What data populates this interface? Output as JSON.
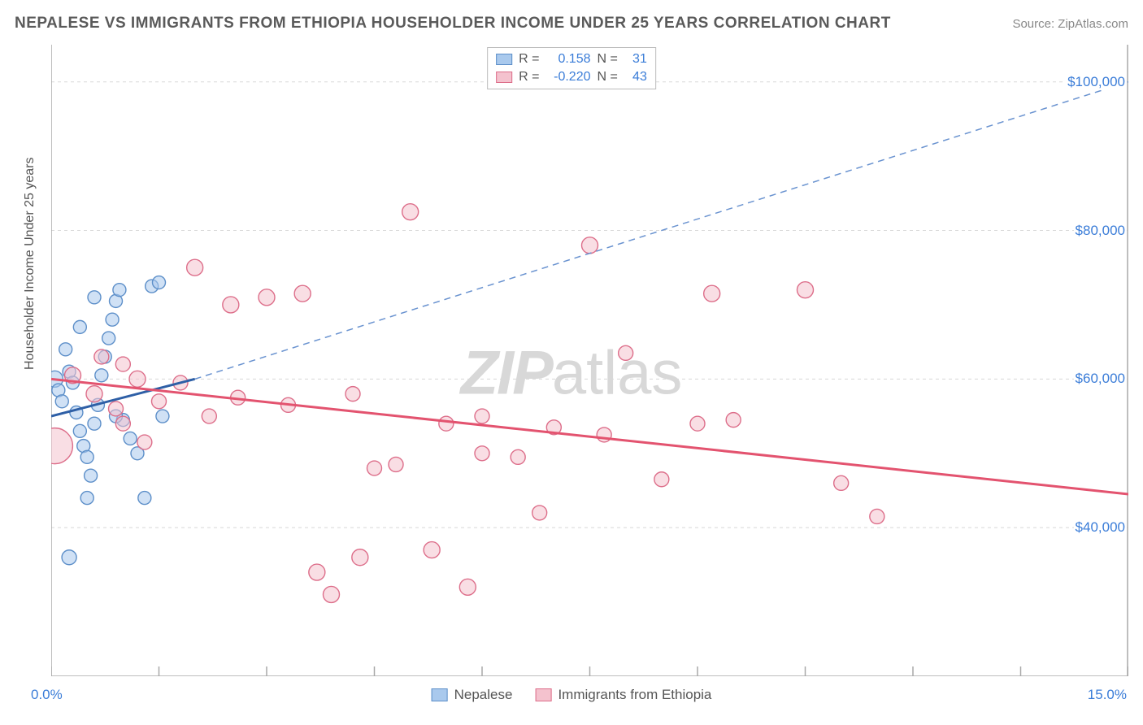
{
  "header": {
    "title": "NEPALESE VS IMMIGRANTS FROM ETHIOPIA HOUSEHOLDER INCOME UNDER 25 YEARS CORRELATION CHART",
    "source": "Source: ZipAtlas.com"
  },
  "watermark": {
    "bold": "ZIP",
    "light": "atlas"
  },
  "chart": {
    "type": "scatter",
    "ylabel": "Householder Income Under 25 years",
    "x_axis": {
      "min_label": "0.0%",
      "max_label": "15.0%",
      "min": 0,
      "max": 15
    },
    "y_axis": {
      "min": 20000,
      "max": 105000,
      "ticks": [
        40000,
        60000,
        80000,
        100000
      ],
      "tick_labels": [
        "$40,000",
        "$60,000",
        "$80,000",
        "$100,000"
      ]
    },
    "x_ticks": [
      0,
      1.5,
      3,
      4.5,
      6,
      7.5,
      9,
      10.5,
      12,
      13.5,
      15
    ],
    "background_color": "#ffffff",
    "grid_color": "#d8d8d8",
    "border_color": "#a8a8a8",
    "series": [
      {
        "name": "Nepalese",
        "fill_color": "#a9c9ed",
        "stroke_color": "#5d8fc9",
        "r_value": "0.158",
        "n_value": "31",
        "trend": {
          "x1": 0,
          "y1": 55000,
          "x2": 2.0,
          "y2": 60000,
          "solid_color": "#2e5fa6",
          "width": 3
        },
        "trend_ext": {
          "x1": 2.0,
          "y1": 60000,
          "x2": 15,
          "y2": 100000,
          "dash_color": "#6a93d0",
          "width": 1.5
        },
        "points": [
          {
            "x": 0.05,
            "y": 60000,
            "r": 10
          },
          {
            "x": 0.1,
            "y": 58500,
            "r": 8
          },
          {
            "x": 0.15,
            "y": 57000,
            "r": 8
          },
          {
            "x": 0.2,
            "y": 64000,
            "r": 8
          },
          {
            "x": 0.25,
            "y": 61000,
            "r": 8
          },
          {
            "x": 0.3,
            "y": 59500,
            "r": 8
          },
          {
            "x": 0.35,
            "y": 55500,
            "r": 8
          },
          {
            "x": 0.4,
            "y": 53000,
            "r": 8
          },
          {
            "x": 0.45,
            "y": 51000,
            "r": 8
          },
          {
            "x": 0.5,
            "y": 49500,
            "r": 8
          },
          {
            "x": 0.55,
            "y": 47000,
            "r": 8
          },
          {
            "x": 0.25,
            "y": 36000,
            "r": 9
          },
          {
            "x": 0.6,
            "y": 54000,
            "r": 8
          },
          {
            "x": 0.65,
            "y": 56500,
            "r": 8
          },
          {
            "x": 0.7,
            "y": 60500,
            "r": 8
          },
          {
            "x": 0.75,
            "y": 63000,
            "r": 8
          },
          {
            "x": 0.8,
            "y": 65500,
            "r": 8
          },
          {
            "x": 0.85,
            "y": 68000,
            "r": 8
          },
          {
            "x": 0.9,
            "y": 70500,
            "r": 8
          },
          {
            "x": 0.95,
            "y": 72000,
            "r": 8
          },
          {
            "x": 1.0,
            "y": 54500,
            "r": 8
          },
          {
            "x": 1.1,
            "y": 52000,
            "r": 8
          },
          {
            "x": 1.2,
            "y": 50000,
            "r": 8
          },
          {
            "x": 1.3,
            "y": 44000,
            "r": 8
          },
          {
            "x": 1.4,
            "y": 72500,
            "r": 8
          },
          {
            "x": 1.5,
            "y": 73000,
            "r": 8
          },
          {
            "x": 1.55,
            "y": 55000,
            "r": 8
          },
          {
            "x": 0.5,
            "y": 44000,
            "r": 8
          },
          {
            "x": 0.9,
            "y": 55000,
            "r": 8
          },
          {
            "x": 0.4,
            "y": 67000,
            "r": 8
          },
          {
            "x": 0.6,
            "y": 71000,
            "r": 8
          }
        ]
      },
      {
        "name": "Immigrants from Ethiopia",
        "fill_color": "#f4c2ce",
        "stroke_color": "#dd6e8a",
        "r_value": "-0.220",
        "n_value": "43",
        "trend": {
          "x1": 0,
          "y1": 60000,
          "x2": 15,
          "y2": 44500,
          "solid_color": "#e3536f",
          "width": 3
        },
        "points": [
          {
            "x": 0.05,
            "y": 51000,
            "r": 22
          },
          {
            "x": 0.3,
            "y": 60500,
            "r": 10
          },
          {
            "x": 0.6,
            "y": 58000,
            "r": 10
          },
          {
            "x": 0.9,
            "y": 56000,
            "r": 9
          },
          {
            "x": 1.2,
            "y": 60000,
            "r": 10
          },
          {
            "x": 1.5,
            "y": 57000,
            "r": 9
          },
          {
            "x": 1.8,
            "y": 59500,
            "r": 9
          },
          {
            "x": 2.0,
            "y": 75000,
            "r": 10
          },
          {
            "x": 2.2,
            "y": 55000,
            "r": 9
          },
          {
            "x": 2.5,
            "y": 70000,
            "r": 10
          },
          {
            "x": 2.6,
            "y": 57500,
            "r": 9
          },
          {
            "x": 3.0,
            "y": 71000,
            "r": 10
          },
          {
            "x": 3.3,
            "y": 56500,
            "r": 9
          },
          {
            "x": 3.5,
            "y": 71500,
            "r": 10
          },
          {
            "x": 3.7,
            "y": 34000,
            "r": 10
          },
          {
            "x": 3.9,
            "y": 31000,
            "r": 10
          },
          {
            "x": 4.2,
            "y": 58000,
            "r": 9
          },
          {
            "x": 4.3,
            "y": 36000,
            "r": 10
          },
          {
            "x": 4.5,
            "y": 48000,
            "r": 9
          },
          {
            "x": 4.8,
            "y": 48500,
            "r": 9
          },
          {
            "x": 5.0,
            "y": 82500,
            "r": 10
          },
          {
            "x": 5.3,
            "y": 37000,
            "r": 10
          },
          {
            "x": 5.5,
            "y": 54000,
            "r": 9
          },
          {
            "x": 5.8,
            "y": 32000,
            "r": 10
          },
          {
            "x": 6.0,
            "y": 50000,
            "r": 9
          },
          {
            "x": 6.0,
            "y": 55000,
            "r": 9
          },
          {
            "x": 6.5,
            "y": 49500,
            "r": 9
          },
          {
            "x": 6.8,
            "y": 42000,
            "r": 9
          },
          {
            "x": 7.0,
            "y": 53500,
            "r": 9
          },
          {
            "x": 7.5,
            "y": 78000,
            "r": 10
          },
          {
            "x": 7.7,
            "y": 52500,
            "r": 9
          },
          {
            "x": 8.0,
            "y": 63500,
            "r": 9
          },
          {
            "x": 8.5,
            "y": 46500,
            "r": 9
          },
          {
            "x": 9.0,
            "y": 54000,
            "r": 9
          },
          {
            "x": 9.2,
            "y": 71500,
            "r": 10
          },
          {
            "x": 9.5,
            "y": 54500,
            "r": 9
          },
          {
            "x": 10.5,
            "y": 72000,
            "r": 10
          },
          {
            "x": 11.0,
            "y": 46000,
            "r": 9
          },
          {
            "x": 11.5,
            "y": 41500,
            "r": 9
          },
          {
            "x": 1.0,
            "y": 54000,
            "r": 9
          },
          {
            "x": 1.3,
            "y": 51500,
            "r": 9
          },
          {
            "x": 0.7,
            "y": 63000,
            "r": 9
          },
          {
            "x": 1.0,
            "y": 62000,
            "r": 9
          }
        ]
      }
    ],
    "legend": {
      "bottom": [
        "Nepalese",
        "Immigrants from Ethiopia"
      ]
    }
  }
}
